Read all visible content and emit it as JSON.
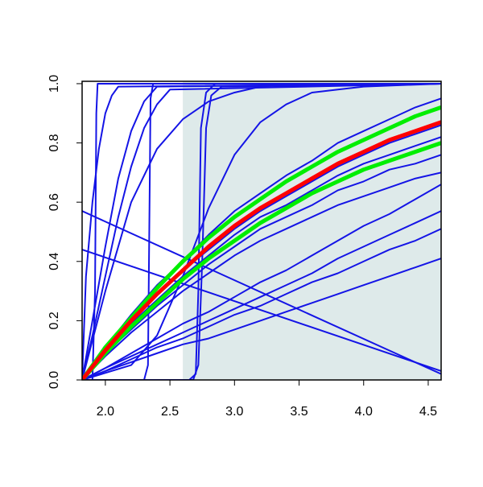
{
  "chart_data": {
    "type": "line",
    "xlim": [
      1.82,
      4.6
    ],
    "ylim": [
      0,
      1.008
    ],
    "xticks": [
      {
        "value": 2,
        "label": "2.0"
      },
      2.5,
      {
        "value": 3,
        "label": "3.0"
      },
      3.5,
      {
        "value": 4,
        "label": "4.0"
      },
      4.5
    ],
    "yticks": [
      {
        "value": 0,
        "label": "0.0"
      },
      0.2,
      0.4,
      0.6,
      0.8,
      {
        "value": 1,
        "label": "1.0"
      }
    ],
    "shade": [
      2.6,
      4.6
    ],
    "shade_color": "#deeaea",
    "x": [
      1.82,
      2.0,
      2.2,
      2.4,
      2.6,
      2.8,
      3.0,
      3.2,
      3.4,
      3.6,
      3.8,
      4.0,
      4.2,
      4.4,
      4.6
    ],
    "series": [
      {
        "color": "#1414e6",
        "values": [
          0,
          0.11,
          0.22,
          0.32,
          0.4,
          0.49,
          0.57,
          0.63,
          0.69,
          0.74,
          0.8,
          0.84,
          0.88,
          0.92,
          0.95
        ]
      },
      {
        "color": "#1414e6",
        "values": [
          0,
          0.1,
          0.2,
          0.29,
          0.37,
          0.44,
          0.51,
          0.57,
          0.62,
          0.67,
          0.72,
          0.76,
          0.8,
          0.83,
          0.86
        ]
      },
      {
        "color": "#1414e6",
        "values": [
          0,
          0.09,
          0.19,
          0.27,
          0.35,
          0.42,
          0.49,
          0.55,
          0.59,
          0.64,
          0.69,
          0.73,
          0.76,
          0.79,
          0.82
        ]
      },
      {
        "color": "#1414e6",
        "values": [
          0,
          0.09,
          0.17,
          0.25,
          0.32,
          0.39,
          0.45,
          0.51,
          0.55,
          0.59,
          0.64,
          0.67,
          0.71,
          0.73,
          0.76
        ]
      },
      {
        "color": "#1414e6",
        "values": [
          0,
          0.08,
          0.16,
          0.23,
          0.3,
          0.36,
          0.42,
          0.47,
          0.51,
          0.55,
          0.59,
          0.62,
          0.65,
          0.68,
          0.7
        ]
      },
      {
        "color": "#1414e6",
        "values": [
          0,
          0.04,
          0.09,
          0.14,
          0.19,
          0.23,
          0.28,
          0.33,
          0.37,
          0.42,
          0.47,
          0.52,
          0.56,
          0.61,
          0.66
        ]
      },
      {
        "color": "#1414e6",
        "values": [
          0,
          0.04,
          0.08,
          0.12,
          0.16,
          0.2,
          0.24,
          0.28,
          0.32,
          0.36,
          0.41,
          0.45,
          0.49,
          0.53,
          0.57
        ]
      },
      {
        "color": "#1414e6",
        "values": [
          0,
          0.03,
          0.07,
          0.11,
          0.14,
          0.18,
          0.22,
          0.25,
          0.29,
          0.33,
          0.36,
          0.4,
          0.44,
          0.47,
          0.51
        ]
      },
      {
        "color": "#1414e6",
        "values": [
          0,
          0.03,
          0.06,
          0.09,
          0.12,
          0.14,
          0.17,
          0.2,
          0.23,
          0.26,
          0.29,
          0.32,
          0.35,
          0.38,
          0.41
        ]
      },
      {
        "color": "#1414e6",
        "x": [
          1.82,
          4.6
        ],
        "values": [
          0.57,
          0.02
        ]
      },
      {
        "color": "#1414e6",
        "x": [
          1.82,
          4.6
        ],
        "values": [
          0.44,
          0.03
        ]
      },
      {
        "color": "#1414e6",
        "x": [
          1.82,
          1.9,
          1.92,
          1.93,
          1.94,
          4.6
        ],
        "values": [
          0,
          0,
          0.3,
          0.9,
          1,
          1
        ]
      },
      {
        "color": "#1414e6",
        "x": [
          1.82,
          1.85,
          1.9,
          1.95,
          2.0,
          2.05,
          2.1,
          4.6
        ],
        "values": [
          0,
          0.35,
          0.6,
          0.78,
          0.9,
          0.96,
          0.99,
          1
        ]
      },
      {
        "color": "#1414e6",
        "x": [
          1.82,
          1.9,
          2.0,
          2.1,
          2.2,
          2.3,
          2.4,
          4.6
        ],
        "values": [
          0,
          0.2,
          0.45,
          0.68,
          0.84,
          0.94,
          0.99,
          1
        ]
      },
      {
        "color": "#1414e6",
        "x": [
          1.82,
          1.9,
          2.0,
          2.1,
          2.2,
          2.3,
          2.4,
          2.5,
          4.6
        ],
        "values": [
          0,
          0.15,
          0.35,
          0.55,
          0.72,
          0.85,
          0.93,
          0.98,
          1
        ]
      },
      {
        "color": "#1414e6",
        "x": [
          1.82,
          2.3,
          2.33,
          2.34,
          2.35,
          2.37,
          4.6
        ],
        "values": [
          0,
          0,
          0.05,
          0.5,
          0.95,
          1,
          1
        ]
      },
      {
        "color": "#1414e6",
        "x": [
          1.82,
          2.0,
          2.2,
          2.4,
          2.6,
          2.8,
          3.0,
          3.2,
          3.5,
          4.6
        ],
        "values": [
          0,
          0.3,
          0.6,
          0.78,
          0.88,
          0.94,
          0.97,
          0.99,
          1,
          1
        ]
      },
      {
        "color": "#1414e6",
        "x": [
          1.82,
          2.65,
          2.7,
          2.72,
          2.74,
          2.78,
          2.85,
          4.6
        ],
        "values": [
          0,
          0,
          0.02,
          0.3,
          0.85,
          0.97,
          1,
          1
        ]
      },
      {
        "color": "#1414e6",
        "x": [
          1.82,
          2.68,
          2.72,
          2.75,
          2.78,
          2.82,
          2.9,
          4.6
        ],
        "values": [
          0,
          0,
          0.05,
          0.4,
          0.85,
          0.96,
          0.99,
          1
        ]
      },
      {
        "color": "#1414e6",
        "x": [
          1.82,
          2.2,
          2.4,
          2.6,
          2.8,
          3.0,
          3.2,
          3.4,
          3.6,
          3.8,
          4.0,
          4.6
        ],
        "values": [
          0,
          0.05,
          0.15,
          0.35,
          0.58,
          0.76,
          0.87,
          0.93,
          0.97,
          0.98,
          0.99,
          1
        ]
      },
      {
        "color": "#00ee00",
        "width": 5,
        "values": [
          0,
          0.11,
          0.21,
          0.31,
          0.4,
          0.48,
          0.55,
          0.61,
          0.67,
          0.72,
          0.77,
          0.81,
          0.85,
          0.89,
          0.92
        ]
      },
      {
        "color": "#00ee00",
        "width": 5,
        "values": [
          0,
          0.09,
          0.18,
          0.26,
          0.34,
          0.41,
          0.47,
          0.53,
          0.58,
          0.63,
          0.67,
          0.71,
          0.74,
          0.77,
          0.8
        ]
      },
      {
        "color": "#ff0000",
        "width": 5,
        "values": [
          0,
          0.1,
          0.2,
          0.29,
          0.37,
          0.45,
          0.52,
          0.58,
          0.63,
          0.68,
          0.73,
          0.77,
          0.81,
          0.84,
          0.87
        ]
      }
    ]
  }
}
